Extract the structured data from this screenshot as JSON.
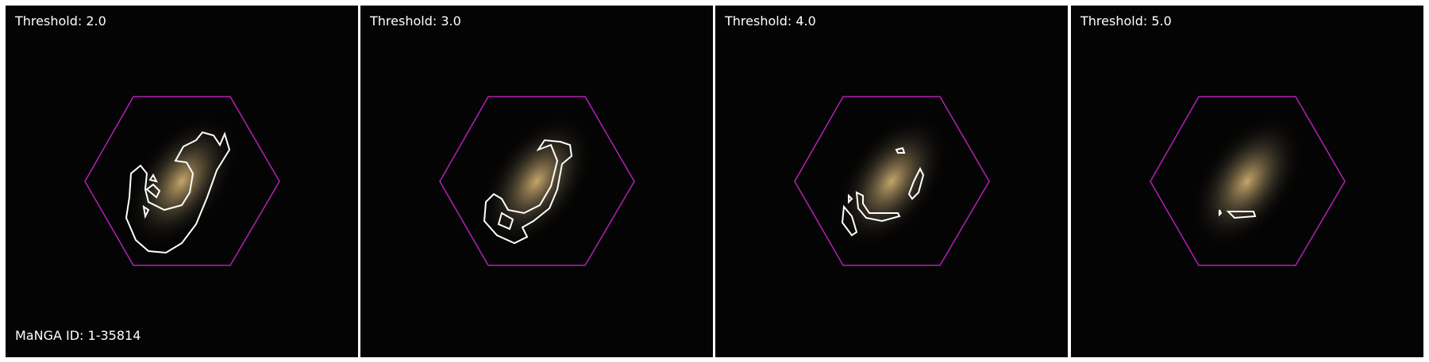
{
  "panels": [
    {
      "threshold_label": "Threshold: 2.0"
    },
    {
      "threshold_label": "Threshold: 3.0"
    },
    {
      "threshold_label": "Threshold: 4.0"
    },
    {
      "threshold_label": "Threshold: 5.0"
    }
  ],
  "manga_id_label": "MaNGA ID: 1-35814",
  "colors": {
    "background": "#050404",
    "hexagon": "#b51fb5",
    "contour": "#ffffff",
    "galaxy_core": "#c9a86c",
    "divider": "#ffffff"
  },
  "icons": [
    "galaxy-image",
    "ifu-hexagon",
    "residual-contour"
  ]
}
